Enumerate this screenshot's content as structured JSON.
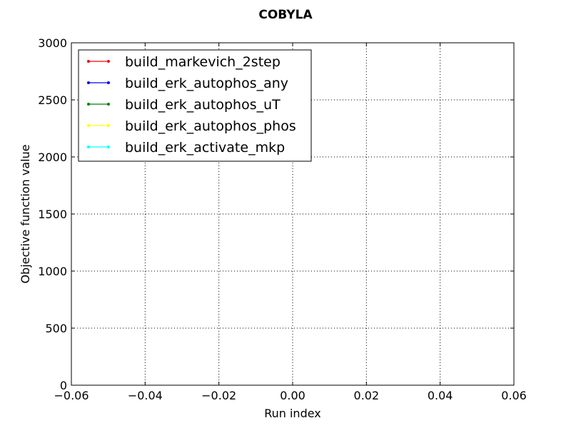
{
  "chart_data": {
    "type": "line",
    "title": "COBYLA",
    "xlabel": "Run index",
    "ylabel": "Objective function value",
    "xlim": [
      -0.06,
      0.06
    ],
    "ylim": [
      0,
      3000
    ],
    "x_ticks": [
      -0.06,
      -0.04,
      -0.02,
      0.0,
      0.02,
      0.04,
      0.06
    ],
    "x_tick_labels": [
      "−0.06",
      "−0.04",
      "−0.02",
      "0.00",
      "0.02",
      "0.04",
      "0.06"
    ],
    "y_ticks": [
      0,
      500,
      1000,
      1500,
      2000,
      2500,
      3000
    ],
    "y_tick_labels": [
      "0",
      "500",
      "1000",
      "1500",
      "2000",
      "2500",
      "3000"
    ],
    "grid": true,
    "legend_position": "top-left",
    "series": [
      {
        "name": "build_markevich_2step",
        "color": "#ff0000",
        "x": [],
        "y": []
      },
      {
        "name": "build_erk_autophos_any",
        "color": "#0000ff",
        "x": [],
        "y": []
      },
      {
        "name": "build_erk_autophos_uT",
        "color": "#008000",
        "x": [],
        "y": []
      },
      {
        "name": "build_erk_autophos_phos",
        "color": "#ffff00",
        "x": [],
        "y": []
      },
      {
        "name": "build_erk_activate_mkp",
        "color": "#00ffff",
        "x": [],
        "y": []
      }
    ]
  }
}
